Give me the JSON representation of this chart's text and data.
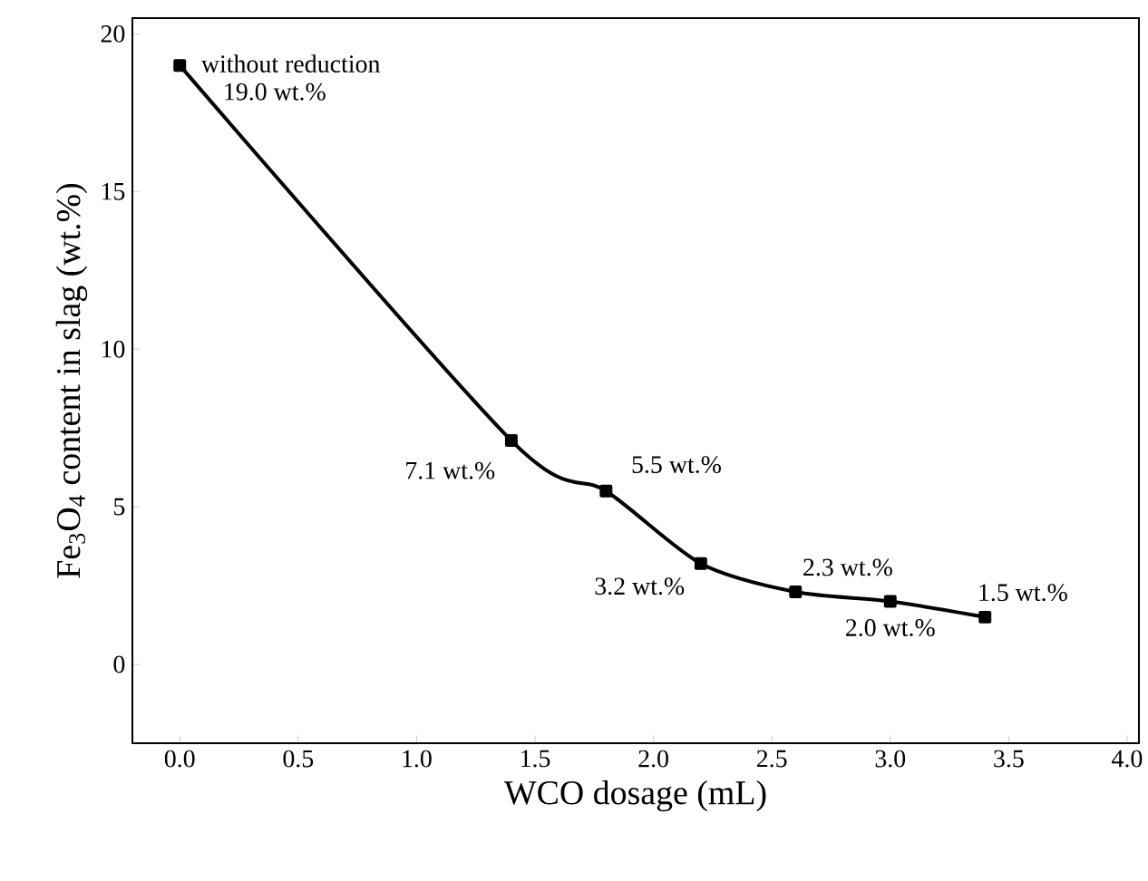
{
  "chart_data": {
    "type": "line",
    "xlabel": "WCO dosage (mL)",
    "ylabel": "Fe$_{3}$O$_{4}$ content in slag (wt.%)",
    "x": [
      0.0,
      1.4,
      1.8,
      2.2,
      2.6,
      3.0,
      3.4
    ],
    "series": [
      {
        "color": "#000000",
        "values": [
          19.0,
          7.1,
          5.5,
          3.2,
          2.3,
          2.0,
          1.5
        ],
        "value_labels": [
          "19.0 wt.%",
          "7.1 wt.%",
          "5.5 wt.%",
          "3.2 wt.%",
          "2.3 wt.%",
          "2.0 wt.%",
          "1.5 wt.%"
        ]
      }
    ],
    "annotations": [
      {
        "text": "without reduction",
        "x": 0.0,
        "y": 19.0
      }
    ],
    "xlim": [
      -0.2,
      4.05
    ],
    "ylim": [
      -2.5,
      20.5
    ],
    "xticks": [
      {
        "value": 0,
        "label": "0.0"
      },
      {
        "value": 0.5,
        "label": "0.5"
      },
      {
        "value": 1,
        "label": "1.0"
      },
      {
        "value": 1.5,
        "label": "1.5"
      },
      {
        "value": 2,
        "label": "2.0"
      },
      {
        "value": 2.5,
        "label": "2.5"
      },
      {
        "value": 3,
        "label": "3.0"
      },
      {
        "value": 3.5,
        "label": "3.5"
      },
      {
        "value": 4,
        "label": "4.0"
      }
    ],
    "yticks": [
      0,
      5,
      10,
      15,
      20
    ],
    "marker": "square",
    "line_style": "solid"
  }
}
